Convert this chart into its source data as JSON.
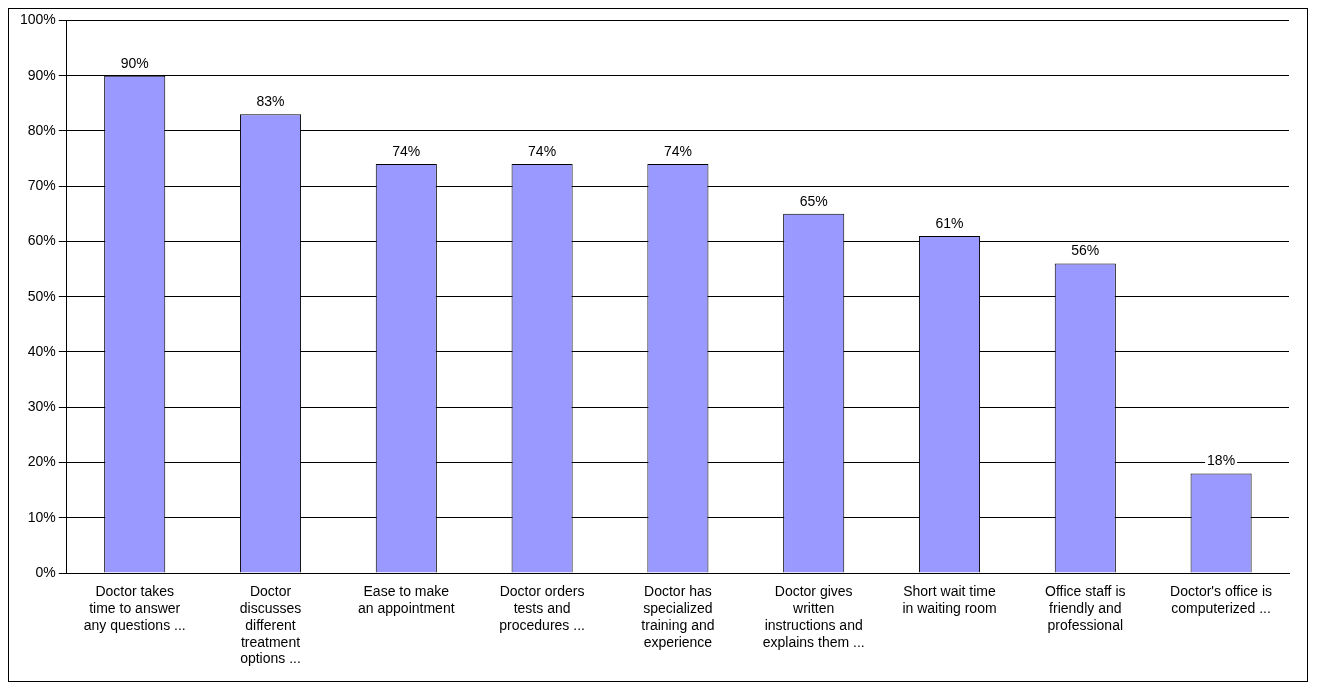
{
  "chart_data": {
    "type": "bar",
    "categories": [
      "Doctor takes time to answer any questions ...",
      "Doctor discusses different treatment options ...",
      "Ease to make an appointment",
      "Doctor orders tests and procedures ...",
      "Doctor has specialized training and experience",
      "Doctor gives written instructions and explains them ...",
      "Short wait time in waiting room",
      "Office staff is friendly and professional",
      "Doctor's office is computerized ..."
    ],
    "values": [
      90,
      83,
      74,
      74,
      74,
      65,
      61,
      56,
      18
    ],
    "color": "#9999ff",
    "value_labels": [
      "90%",
      "83%",
      "74%",
      "74%",
      "74%",
      "65%",
      "61%",
      "56%",
      "18%"
    ],
    "ylim": [
      0,
      100
    ],
    "yticks": [
      {
        "value": 0,
        "label": "0%"
      },
      {
        "value": 10,
        "label": "10%"
      },
      {
        "value": 20,
        "label": "20%"
      },
      {
        "value": 30,
        "label": "30%"
      },
      {
        "value": 40,
        "label": "40%"
      },
      {
        "value": 50,
        "label": "50%"
      },
      {
        "value": 60,
        "label": "60%"
      },
      {
        "value": 70,
        "label": "70%"
      },
      {
        "value": 80,
        "label": "80%"
      },
      {
        "value": 90,
        "label": "90%"
      },
      {
        "value": 100,
        "label": "100%"
      }
    ],
    "grid": "y",
    "legend": false
  }
}
